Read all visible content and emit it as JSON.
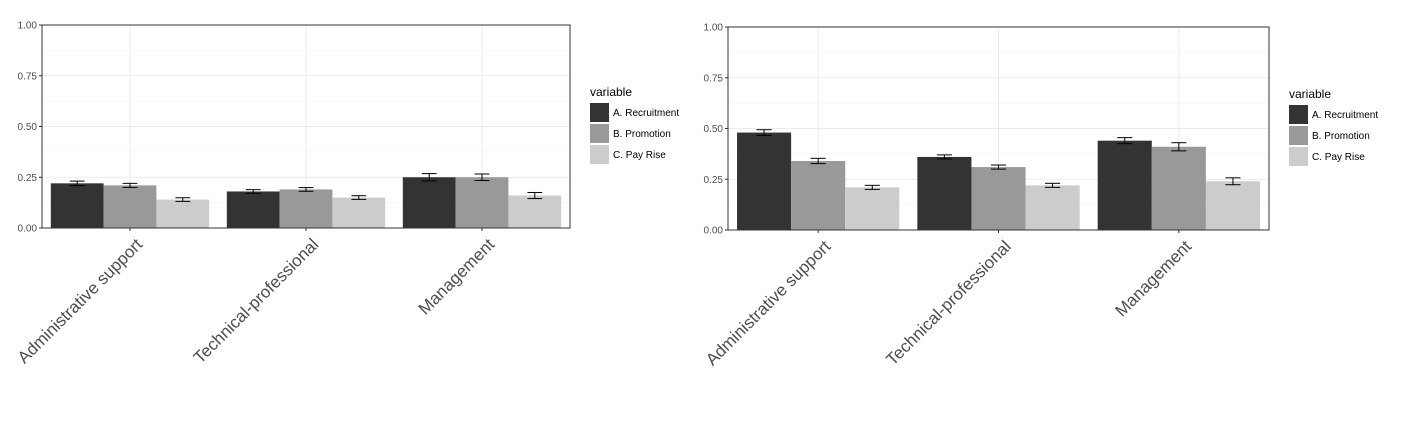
{
  "chart_data": [
    {
      "type": "bar",
      "categories": [
        "Administrative support",
        "Technical-professional",
        "Management"
      ],
      "series": [
        {
          "name": "A. Recruitment",
          "values": [
            0.22,
            0.18,
            0.25
          ],
          "errors": [
            0.011,
            0.009,
            0.018
          ],
          "color": "#333333"
        },
        {
          "name": "B. Promotion",
          "values": [
            0.21,
            0.19,
            0.25
          ],
          "errors": [
            0.01,
            0.009,
            0.016
          ],
          "color": "#999999"
        },
        {
          "name": "C. Pay Rise",
          "values": [
            0.14,
            0.15,
            0.16
          ],
          "errors": [
            0.009,
            0.009,
            0.015
          ],
          "color": "#cccccc"
        }
      ],
      "yticks": [
        "0.00",
        "0.25",
        "0.50",
        "0.75",
        "1.00"
      ],
      "ylim": [
        0,
        1
      ],
      "legend_title": "variable",
      "legend_position": "right",
      "grid": true,
      "xlabel": "",
      "ylabel": ""
    },
    {
      "type": "bar",
      "categories": [
        "Administrative support",
        "Technical-professional",
        "Management"
      ],
      "series": [
        {
          "name": "A. Recruitment",
          "values": [
            0.48,
            0.36,
            0.44
          ],
          "errors": [
            0.014,
            0.01,
            0.015
          ],
          "color": "#333333"
        },
        {
          "name": "B. Promotion",
          "values": [
            0.34,
            0.31,
            0.41
          ],
          "errors": [
            0.013,
            0.01,
            0.02
          ],
          "color": "#999999"
        },
        {
          "name": "C. Pay Rise",
          "values": [
            0.21,
            0.22,
            0.24
          ],
          "errors": [
            0.01,
            0.01,
            0.017
          ],
          "color": "#cccccc"
        }
      ],
      "yticks": [
        "0.00",
        "0.25",
        "0.50",
        "0.75",
        "1.00"
      ],
      "ylim": [
        0,
        1
      ],
      "legend_title": "variable",
      "legend_position": "right",
      "grid": true,
      "xlabel": "",
      "ylabel": ""
    }
  ]
}
